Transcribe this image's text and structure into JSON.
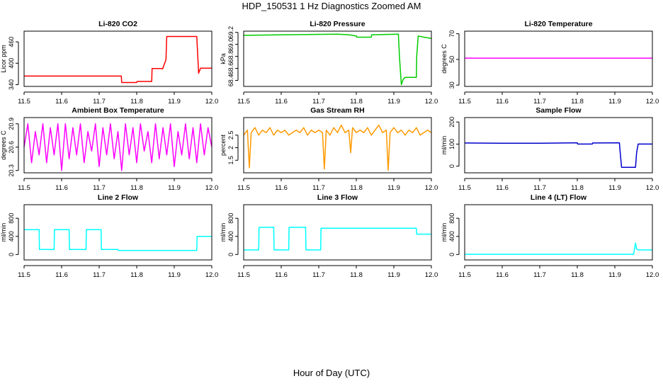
{
  "figure": {
    "title": "HDP_150531  1 Hz Diagnostics Zoomed AM",
    "xlabel": "Hour of Day (UTC)"
  },
  "chart_data": [
    {
      "type": "line",
      "title": "Li-820 CO2",
      "ylabel": "Licor ppm",
      "color": "#ff0000",
      "xlim": [
        11.5,
        12.0
      ],
      "xticks": [
        11.5,
        11.6,
        11.7,
        11.8,
        11.9,
        12.0
      ],
      "xtick_labels": [
        "11.5",
        "11.6",
        "11.7",
        "11.8",
        "11.9",
        "12.0"
      ],
      "ylim": [
        335,
        490
      ],
      "yticks": [
        340,
        400,
        460
      ],
      "ytick_labels": [
        "340",
        "400",
        "460"
      ],
      "series": [
        {
          "x": [
            11.5,
            11.6,
            11.759,
            11.76,
            11.8,
            11.801,
            11.84,
            11.841,
            11.868,
            11.869,
            11.878,
            11.88,
            11.96,
            11.965,
            11.97,
            12.0
          ],
          "y": [
            364,
            364,
            364,
            346,
            346,
            349,
            349,
            385,
            385,
            384,
            410,
            475,
            475,
            372,
            386,
            386
          ]
        }
      ]
    },
    {
      "type": "line",
      "title": "Li-820 Pressure",
      "ylabel": "kPa",
      "color": "#00cc00",
      "xlim": [
        11.5,
        12.0
      ],
      "xticks": [
        11.5,
        11.6,
        11.7,
        11.8,
        11.9,
        12.0
      ],
      "xtick_labels": [
        "11.5",
        "11.6",
        "11.7",
        "11.8",
        "11.9",
        "12.0"
      ],
      "ylim": [
        68.3,
        69.22
      ],
      "yticks": [
        68.4,
        68.6,
        68.8,
        69.0,
        69.2
      ],
      "ytick_labels": [
        "68.4",
        "68.6",
        "68.8",
        "69.0",
        "69.2"
      ],
      "series": [
        {
          "x": [
            11.5,
            11.6,
            11.75,
            11.78,
            11.8,
            11.801,
            11.84,
            11.841,
            11.912,
            11.915,
            11.92,
            11.925,
            11.93,
            11.96,
            11.961,
            11.965,
            11.98,
            12.0
          ],
          "y": [
            69.15,
            69.16,
            69.17,
            69.16,
            69.14,
            69.12,
            69.12,
            69.16,
            69.17,
            68.8,
            68.33,
            68.42,
            68.45,
            68.45,
            68.8,
            69.14,
            69.12,
            69.1
          ]
        }
      ]
    },
    {
      "type": "line",
      "title": "Li-820 Temperature",
      "ylabel": "degrees C",
      "color": "#ff00ff",
      "xlim": [
        11.5,
        12.0
      ],
      "xticks": [
        11.5,
        11.6,
        11.7,
        11.8,
        11.9,
        12.0
      ],
      "xtick_labels": [
        "11.5",
        "11.6",
        "11.7",
        "11.8",
        "11.9",
        "12.0"
      ],
      "ylim": [
        29,
        72
      ],
      "yticks": [
        30,
        50,
        70
      ],
      "ytick_labels": [
        "30",
        "50",
        "70"
      ],
      "series": [
        {
          "x": [
            11.5,
            12.0
          ],
          "y": [
            51,
            51
          ]
        }
      ]
    },
    {
      "type": "line",
      "title": "Ambient Box Temperature",
      "ylabel": "degrees C",
      "color": "#ff00ff",
      "xlim": [
        11.5,
        12.0
      ],
      "xticks": [
        11.5,
        11.6,
        11.7,
        11.8,
        11.9,
        12.0
      ],
      "xtick_labels": [
        "11.5",
        "11.6",
        "11.7",
        "11.8",
        "11.9",
        "12.0"
      ],
      "ylim": [
        20.27,
        20.98
      ],
      "yticks": [
        20.3,
        20.6,
        20.9
      ],
      "ytick_labels": [
        "20.3",
        "20.6",
        "20.9"
      ],
      "series": [
        {
          "x": [
            11.5,
            11.51,
            11.52,
            11.53,
            11.54,
            11.55,
            11.56,
            11.57,
            11.58,
            11.59,
            11.6,
            11.61,
            11.62,
            11.63,
            11.64,
            11.65,
            11.66,
            11.67,
            11.68,
            11.69,
            11.7,
            11.71,
            11.72,
            11.73,
            11.74,
            11.75,
            11.76,
            11.77,
            11.78,
            11.79,
            11.8,
            11.81,
            11.82,
            11.83,
            11.84,
            11.85,
            11.86,
            11.87,
            11.88,
            11.89,
            11.9,
            11.91,
            11.92,
            11.93,
            11.94,
            11.95,
            11.96,
            11.97,
            11.98,
            11.99,
            12.0
          ],
          "y": [
            20.6,
            20.9,
            20.4,
            20.8,
            20.5,
            20.9,
            20.4,
            20.85,
            20.5,
            20.9,
            20.3,
            20.9,
            20.45,
            20.85,
            20.5,
            20.9,
            20.4,
            20.8,
            20.55,
            20.9,
            20.35,
            20.85,
            20.5,
            20.9,
            20.45,
            20.8,
            20.3,
            20.9,
            20.5,
            20.85,
            20.4,
            20.9,
            20.55,
            20.8,
            20.4,
            20.9,
            20.45,
            20.85,
            20.5,
            20.9,
            20.35,
            20.8,
            20.5,
            20.9,
            20.45,
            20.85,
            20.4,
            20.9,
            20.5,
            20.85,
            20.6
          ]
        }
      ]
    },
    {
      "type": "line",
      "title": "Gas Stream RH",
      "ylabel": "percent",
      "color": "#ff9900",
      "xlim": [
        11.5,
        12.0
      ],
      "xticks": [
        11.5,
        11.6,
        11.7,
        11.8,
        11.9,
        12.0
      ],
      "xtick_labels": [
        "11.5",
        "11.6",
        "11.7",
        "11.8",
        "11.9",
        "12.0"
      ],
      "ylim": [
        1.0,
        3.2
      ],
      "yticks": [
        1.5,
        2.0,
        2.5
      ],
      "ytick_labels": [
        "1.5",
        "2",
        "2.5"
      ],
      "series": [
        {
          "x": [
            11.5,
            11.51,
            11.515,
            11.52,
            11.53,
            11.54,
            11.55,
            11.56,
            11.57,
            11.58,
            11.59,
            11.6,
            11.61,
            11.62,
            11.63,
            11.64,
            11.65,
            11.66,
            11.67,
            11.68,
            11.69,
            11.7,
            11.71,
            11.715,
            11.72,
            11.73,
            11.74,
            11.75,
            11.76,
            11.77,
            11.78,
            11.785,
            11.79,
            11.8,
            11.81,
            11.82,
            11.83,
            11.84,
            11.85,
            11.86,
            11.87,
            11.88,
            11.885,
            11.89,
            11.9,
            11.91,
            11.92,
            11.93,
            11.94,
            11.95,
            11.96,
            11.97,
            11.98,
            11.99,
            12.0
          ],
          "y": [
            2.5,
            2.7,
            1.2,
            2.6,
            2.8,
            2.5,
            2.7,
            2.6,
            2.8,
            2.5,
            2.7,
            2.6,
            2.7,
            2.5,
            2.6,
            2.7,
            2.6,
            2.8,
            2.5,
            2.7,
            2.6,
            2.7,
            2.6,
            1.15,
            2.7,
            2.5,
            2.8,
            2.6,
            2.9,
            2.6,
            2.7,
            1.8,
            2.8,
            2.6,
            2.7,
            2.6,
            2.8,
            2.5,
            2.7,
            2.9,
            2.6,
            2.7,
            1.1,
            2.6,
            2.8,
            2.6,
            2.7,
            2.5,
            2.7,
            2.6,
            2.8,
            2.5,
            2.6,
            2.7,
            2.6
          ]
        }
      ]
    },
    {
      "type": "line",
      "title": "Sample Flow",
      "ylabel": "ml/min",
      "color": "#0000cc",
      "xlim": [
        11.5,
        12.0
      ],
      "xticks": [
        11.5,
        11.6,
        11.7,
        11.8,
        11.9,
        12.0
      ],
      "xtick_labels": [
        "11.5",
        "11.6",
        "11.7",
        "11.8",
        "11.9",
        "12.0"
      ],
      "ylim": [
        -30,
        220
      ],
      "yticks": [
        0,
        100,
        200
      ],
      "ytick_labels": [
        "0",
        "100",
        "200"
      ],
      "series": [
        {
          "x": [
            11.5,
            11.6,
            11.7,
            11.8,
            11.801,
            11.84,
            11.841,
            11.912,
            11.915,
            11.918,
            11.955,
            11.958,
            11.962,
            12.0
          ],
          "y": [
            105,
            104,
            104,
            106,
            100,
            100,
            105,
            106,
            50,
            -5,
            -5,
            60,
            100,
            100
          ]
        }
      ]
    },
    {
      "type": "line",
      "title": "Line 2 Flow",
      "ylabel": "ml/min",
      "color": "#00ffff",
      "xlim": [
        11.5,
        12.0
      ],
      "xticks": [
        11.5,
        11.6,
        11.7,
        11.8,
        11.9,
        12.0
      ],
      "xtick_labels": [
        "11.5",
        "11.6",
        "11.7",
        "11.8",
        "11.9",
        "12.0"
      ],
      "ylim": [
        -120,
        1100
      ],
      "yticks": [
        0,
        400,
        800
      ],
      "ytick_labels": [
        "0",
        "400",
        "800"
      ],
      "series": [
        {
          "x": [
            11.5,
            11.54,
            11.541,
            11.58,
            11.581,
            11.62,
            11.621,
            11.665,
            11.666,
            11.705,
            11.706,
            11.75,
            11.751,
            11.96,
            11.961,
            12.0
          ],
          "y": [
            550,
            550,
            110,
            110,
            550,
            550,
            110,
            110,
            550,
            550,
            110,
            110,
            90,
            90,
            400,
            400
          ]
        }
      ]
    },
    {
      "type": "line",
      "title": "Line 3 Flow",
      "ylabel": "ml/min",
      "color": "#00ffff",
      "xlim": [
        11.5,
        12.0
      ],
      "xticks": [
        11.5,
        11.6,
        11.7,
        11.8,
        11.9,
        12.0
      ],
      "xtick_labels": [
        "11.5",
        "11.6",
        "11.7",
        "11.8",
        "11.9",
        "12.0"
      ],
      "ylim": [
        -120,
        1100
      ],
      "yticks": [
        0,
        400,
        800
      ],
      "ytick_labels": [
        "0",
        "400",
        "800"
      ],
      "series": [
        {
          "x": [
            11.5,
            11.54,
            11.541,
            11.58,
            11.581,
            11.62,
            11.621,
            11.665,
            11.666,
            11.705,
            11.706,
            11.96,
            11.961,
            12.0
          ],
          "y": [
            100,
            100,
            600,
            600,
            100,
            100,
            600,
            600,
            100,
            100,
            580,
            580,
            450,
            450
          ]
        }
      ]
    },
    {
      "type": "line",
      "title": "Line 4 (LT) Flow",
      "ylabel": "ml/min",
      "color": "#00ffff",
      "xlim": [
        11.5,
        12.0
      ],
      "xticks": [
        11.5,
        11.6,
        11.7,
        11.8,
        11.9,
        12.0
      ],
      "xtick_labels": [
        "11.5",
        "11.6",
        "11.7",
        "11.8",
        "11.9",
        "12.0"
      ],
      "ylim": [
        -120,
        1100
      ],
      "yticks": [
        0,
        400,
        800
      ],
      "ytick_labels": [
        "0",
        "400",
        "800"
      ],
      "series": [
        {
          "x": [
            11.5,
            11.95,
            11.955,
            11.958,
            11.962,
            12.0
          ],
          "y": [
            5,
            5,
            250,
            120,
            100,
            100
          ]
        }
      ]
    }
  ]
}
